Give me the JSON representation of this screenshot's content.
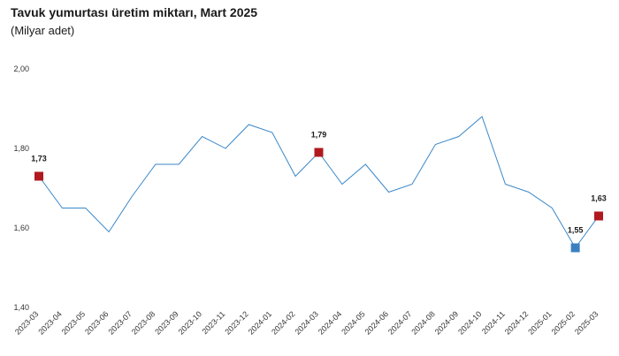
{
  "chart_data": {
    "type": "line",
    "title": "Tavuk yumurtası üretim miktarı, Mart 2025",
    "subtitle": "(Milyar adet)",
    "xlabel": "",
    "ylabel": "",
    "ylim": [
      1.4,
      2.0
    ],
    "yticks": [
      "1,40",
      "1,60",
      "1,80",
      "2,00"
    ],
    "grid": false,
    "categories": [
      "2023-03",
      "2023-04",
      "2023-05",
      "2023-06",
      "2023-07",
      "2023-08",
      "2023-09",
      "2023-10",
      "2023-11",
      "2023-12",
      "2024-01",
      "2024-02",
      "2024-03",
      "2024-04",
      "2024-05",
      "2024-06",
      "2024-07",
      "2024-08",
      "2024-09",
      "2024-10",
      "2024-11",
      "2024-12",
      "2025-01",
      "2025-02",
      "2025-03"
    ],
    "series": [
      {
        "values": [
          1.73,
          1.65,
          1.65,
          1.59,
          1.68,
          1.76,
          1.76,
          1.83,
          1.8,
          1.86,
          1.84,
          1.73,
          1.79,
          1.71,
          1.76,
          1.69,
          1.71,
          1.81,
          1.83,
          1.88,
          1.71,
          1.69,
          1.65,
          1.55,
          1.63
        ],
        "color": "#3a87c8"
      }
    ],
    "highlighted_points": [
      {
        "category": "2023-03",
        "label": "1,73",
        "color": "#b0191e"
      },
      {
        "category": "2024-03",
        "label": "1,79",
        "color": "#b0191e"
      },
      {
        "category": "2025-02",
        "label": "1,55",
        "color": "#3a80bf"
      },
      {
        "category": "2025-03",
        "label": "1,63",
        "color": "#b0191e"
      }
    ]
  }
}
